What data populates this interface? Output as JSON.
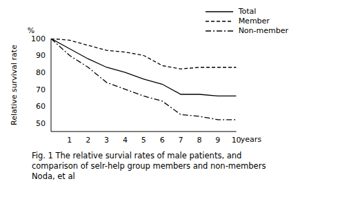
{
  "chart_data": {
    "type": "line",
    "title": "Fig. 1  The relative survial rates of male patients, and comparison of selr-help group members and non-members Noda, et al",
    "xlabel": "years",
    "ylabel": "Relative survival rate",
    "annotations": [
      "%"
    ],
    "x": [
      0,
      1,
      2,
      3,
      4,
      5,
      6,
      7,
      8,
      9,
      10
    ],
    "series": [
      {
        "name": "Total",
        "color": "#000000",
        "line_style": "solid",
        "values": [
          100,
          94,
          88,
          83,
          80,
          76,
          73,
          67,
          67,
          66,
          66
        ]
      },
      {
        "name": "Member",
        "color": "#000000",
        "line_style": "dashed",
        "values": [
          100,
          99,
          96,
          93,
          92,
          90,
          84,
          82,
          83,
          83,
          83
        ]
      },
      {
        "name": "Non-member",
        "color": "#000000",
        "line_style": "dashdot",
        "values": [
          100,
          90,
          83,
          74,
          70,
          66,
          63,
          55,
          54,
          52,
          52
        ]
      }
    ],
    "xlim": [
      0,
      10
    ],
    "xticks": [
      1,
      2,
      3,
      4,
      5,
      6,
      7,
      8,
      9,
      10
    ],
    "ylim": [
      45,
      100
    ],
    "yticks": [
      50,
      60,
      70,
      80,
      90,
      100
    ],
    "grid": false,
    "legend": "top-right"
  }
}
